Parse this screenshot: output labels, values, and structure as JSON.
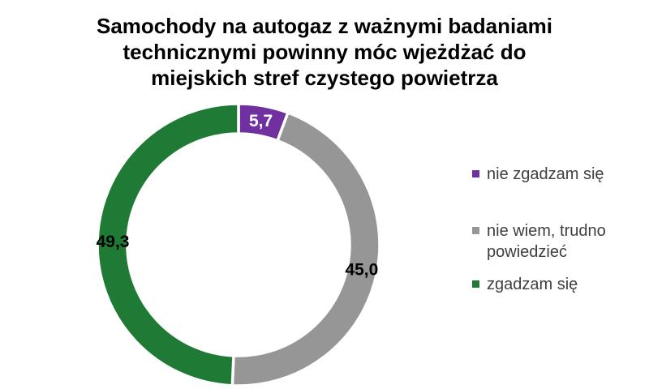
{
  "chart_data": {
    "type": "pie",
    "subtype": "donut",
    "title": "Samochody na autogaz z ważnymi badaniami technicznymi powinny móc wjeżdżać do miejskich stref czystego powietrza",
    "title_lines": [
      "Samochody na autogaz z ważnymi badaniami",
      "technicznymi powinny móc wjeżdżać do",
      "miejskich stref czystego powietrza"
    ],
    "unit": "percent",
    "series": [
      {
        "name": "nie zgadzam się",
        "value": 5.7,
        "label": "5,7",
        "color": "#7030A0",
        "label_color": "#FFFFFF"
      },
      {
        "name": "nie wiem, trudno powiedzieć",
        "value": 45.0,
        "label": "45,0",
        "color": "#969696",
        "label_color": "#000000"
      },
      {
        "name": "zgadzam się",
        "value": 49.3,
        "label": "49,3",
        "color": "#1E7A34",
        "label_color": "#000000"
      }
    ],
    "start_angle_deg": 0,
    "direction": "clockwise",
    "hole_ratio": 0.79,
    "legend_position": "right",
    "legend_text_color": "#3F3F3F",
    "separator_color": "#FFFFFF"
  }
}
